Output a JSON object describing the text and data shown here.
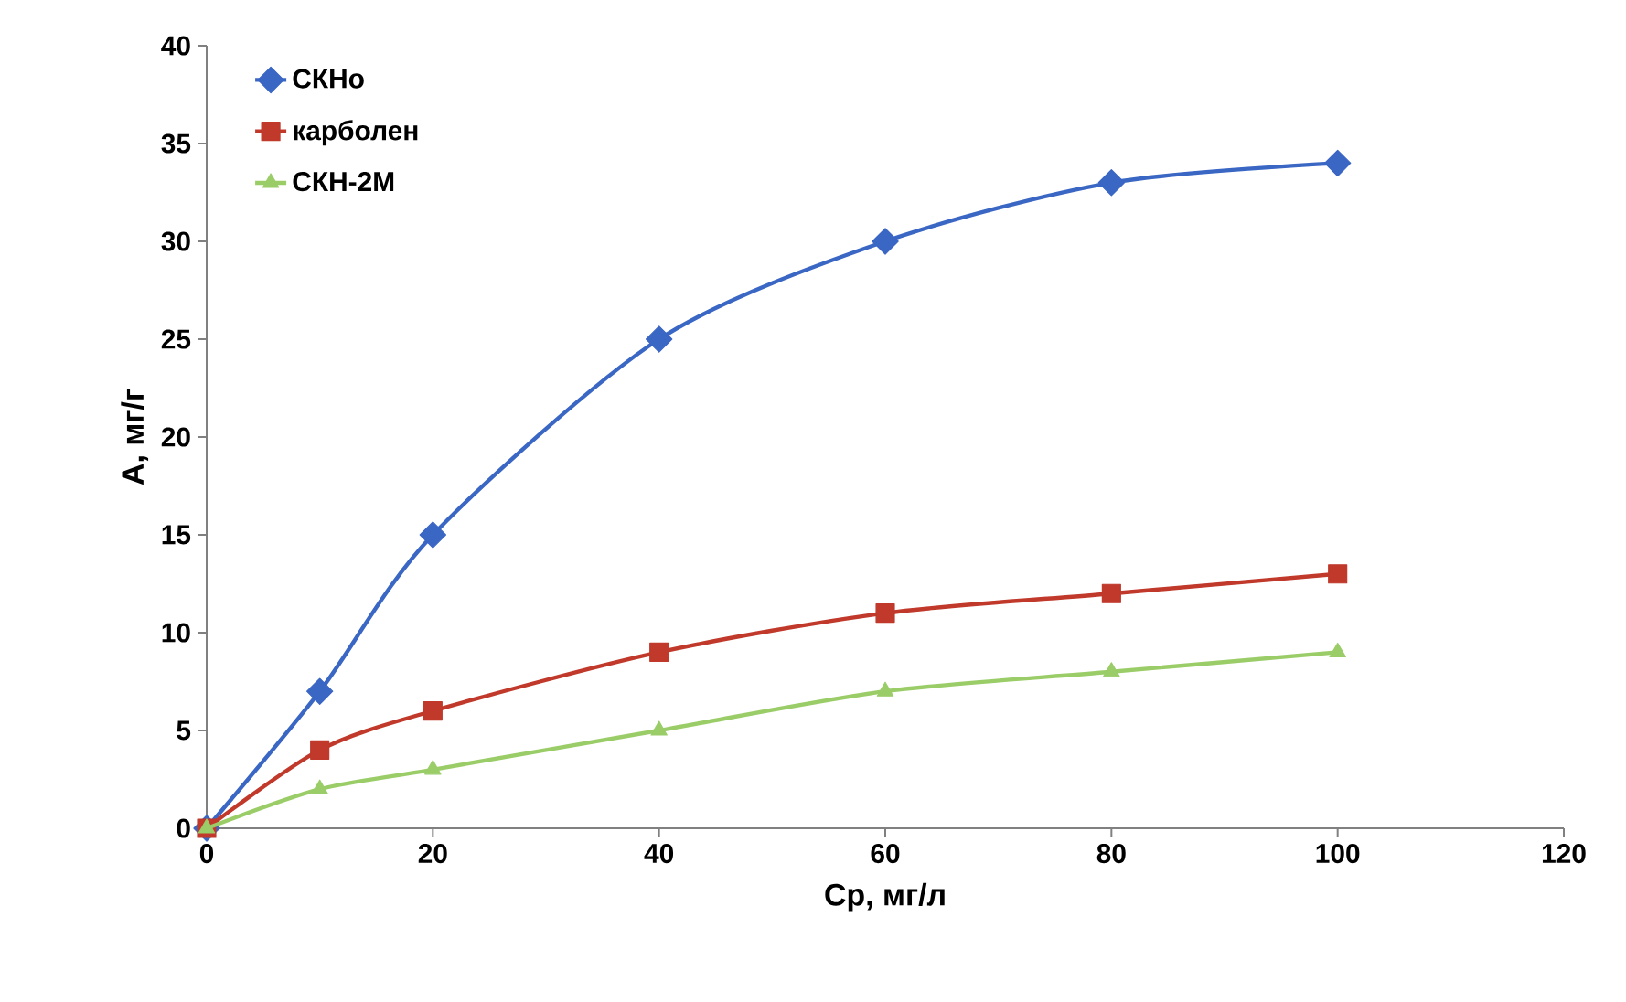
{
  "chart_data": {
    "type": "line",
    "xlabel": "Ср, мг/л",
    "ylabel": "А, мг/г",
    "xlim": [
      0,
      120
    ],
    "xticks": [
      0,
      20,
      40,
      60,
      80,
      100,
      120
    ],
    "ylim": [
      0,
      40
    ],
    "yticks": [
      0,
      5,
      10,
      15,
      20,
      25,
      30,
      35,
      40
    ],
    "grid": false,
    "legend": "top left",
    "x": [
      0,
      10,
      20,
      40,
      60,
      80,
      100
    ],
    "series": [
      {
        "name": "СКНо",
        "color": "#3a66c4",
        "marker": "diamond",
        "values": [
          0,
          7,
          15,
          25,
          30,
          33,
          34
        ]
      },
      {
        "name": "карболен",
        "color": "#c0392b",
        "marker": "square",
        "values": [
          0,
          4,
          6,
          9,
          11,
          12,
          13
        ]
      },
      {
        "name": "СКН-2М",
        "color": "#9acd68",
        "marker": "triangle",
        "values": [
          0,
          2,
          3,
          5,
          7,
          8,
          9
        ]
      }
    ]
  }
}
